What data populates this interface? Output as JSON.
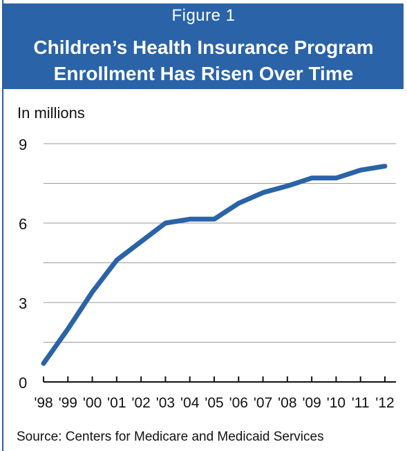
{
  "header": {
    "figure_label": "Figure 1",
    "title_line1": "Children’s Health Insurance Program",
    "title_line2": "Enrollment Has Risen Over Time"
  },
  "source": "Source: Centers for Medicare and Medicaid Services",
  "colors": {
    "header_bg": "#2a63a8",
    "line": "#2a63a8",
    "grid": "#9a9a9a",
    "axis": "#111111"
  },
  "chart_data": {
    "type": "line",
    "unit_label": "In millions",
    "categories": [
      "'98",
      "'99",
      "'00",
      "'01",
      "'02",
      "'03",
      "'04",
      "'05",
      "'06",
      "'07",
      "'08",
      "'09",
      "'10",
      "'11",
      "'12"
    ],
    "series": [
      {
        "values": [
          0.7,
          2.0,
          3.4,
          4.6,
          5.3,
          6.0,
          6.15,
          6.15,
          6.75,
          7.15,
          7.4,
          7.7,
          7.7,
          8.0,
          8.15
        ]
      }
    ],
    "y_ticks": [
      0,
      3,
      6,
      9
    ],
    "ylim": [
      0,
      9
    ],
    "grid": true,
    "legend": "none"
  }
}
